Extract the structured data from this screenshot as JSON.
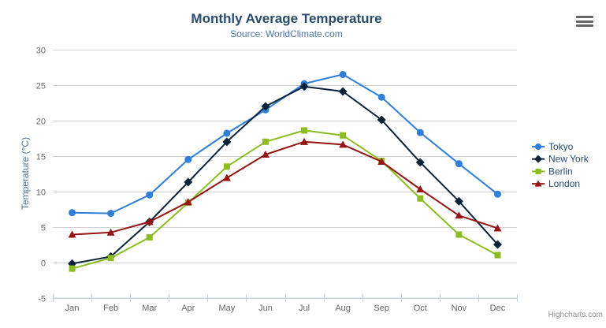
{
  "credit": {
    "label": "Highcharts.com"
  },
  "menu": {
    "icon": "hamburger-icon"
  },
  "colors": {
    "title": "#274b6d",
    "subtitle": "#4d759e",
    "axis_label": "#666666",
    "axis_title": "#4d759e",
    "grid": "#d0d0d0",
    "axis_line": "#c0d0e0",
    "legend_text": "#274b6d",
    "credit": "#909090",
    "menu_icon": "#666666"
  },
  "chart_data": {
    "type": "line",
    "title": "Monthly Average Temperature",
    "subtitle": "Source: WorldClimate.com",
    "xlabel": "",
    "ylabel": "Temperature (°C)",
    "ylim": [
      -5,
      30
    ],
    "ytick_interval": 5,
    "grid": true,
    "legend_position": "right",
    "categories": [
      "Jan",
      "Feb",
      "Mar",
      "Apr",
      "May",
      "Jun",
      "Jul",
      "Aug",
      "Sep",
      "Oct",
      "Nov",
      "Dec"
    ],
    "series": [
      {
        "name": "Tokyo",
        "color": "#2f7ed8",
        "marker": "circle",
        "values": [
          7.0,
          6.9,
          9.5,
          14.5,
          18.2,
          21.5,
          25.2,
          26.5,
          23.3,
          18.3,
          13.9,
          9.6
        ]
      },
      {
        "name": "New York",
        "color": "#0d233a",
        "marker": "diamond",
        "values": [
          -0.2,
          0.8,
          5.7,
          11.3,
          17.0,
          22.0,
          24.8,
          24.1,
          20.1,
          14.1,
          8.6,
          2.5
        ]
      },
      {
        "name": "Berlin",
        "color": "#8bbc21",
        "marker": "square",
        "values": [
          -0.9,
          0.6,
          3.5,
          8.4,
          13.5,
          17.0,
          18.6,
          17.9,
          14.3,
          9.0,
          3.9,
          1.0
        ]
      },
      {
        "name": "London",
        "color": "#961414",
        "marker": "triangle",
        "values": [
          3.9,
          4.2,
          5.7,
          8.5,
          11.9,
          15.2,
          17.0,
          16.6,
          14.2,
          10.3,
          6.6,
          4.8
        ]
      }
    ]
  }
}
